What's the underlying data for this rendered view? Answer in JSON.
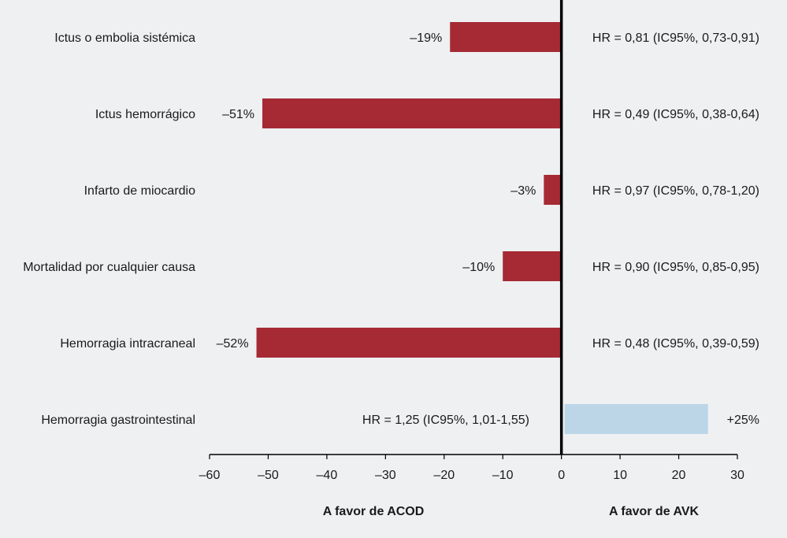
{
  "chart_data": {
    "type": "bar",
    "orientation": "horizontal",
    "categories": [
      "Ictus o embolia sistémica",
      "Ictus hemorrágico",
      "Infarto de miocardio",
      "Mortalidad por cualquier causa",
      "Hemorragia intracraneal",
      "Hemorragia gastrointestinal"
    ],
    "values": [
      -19,
      -51,
      -3,
      -10,
      -52,
      25
    ],
    "value_labels": [
      "–19%",
      "–51%",
      "–3%",
      "–10%",
      "–52%",
      "+25%"
    ],
    "hr_labels": [
      "HR = 0,81 (IC95%, 0,73-0,91)",
      "HR = 0,49 (IC95%, 0,38-0,64)",
      "HR = 0,97 (IC95%, 0,78-1,20)",
      "HR = 0,90 (IC95%, 0,85-0,95)",
      "HR = 0,48 (IC95%, 0,39-0,59)",
      "HR = 1,25 (IC95%, 1,01-1,55)"
    ],
    "xlim": [
      -60,
      30
    ],
    "xticks": [
      -60,
      -50,
      -40,
      -30,
      -20,
      -10,
      0,
      10,
      20,
      30
    ],
    "xtick_labels": [
      "–60",
      "–50",
      "–40",
      "–30",
      "–20",
      "–10",
      "0",
      "10",
      "20",
      "30"
    ],
    "side_labels": {
      "left": "A favor de ACOD",
      "right": "A favor de AVK"
    },
    "colors": {
      "negative": "#a52a34",
      "positive": "#bcd6e8",
      "background": "#eef0f2",
      "axis": "#000000"
    },
    "grid": false,
    "legend": "none"
  }
}
